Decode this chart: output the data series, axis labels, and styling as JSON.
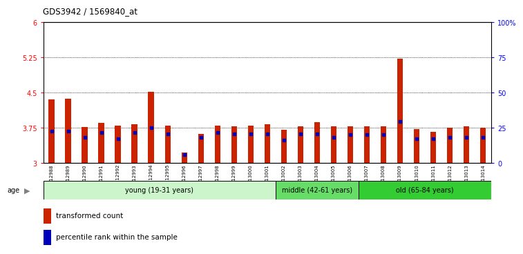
{
  "title": "GDS3942 / 1569840_at",
  "samples": [
    "GSM812988",
    "GSM812989",
    "GSM812990",
    "GSM812991",
    "GSM812992",
    "GSM812993",
    "GSM812994",
    "GSM812995",
    "GSM812996",
    "GSM812997",
    "GSM812998",
    "GSM812999",
    "GSM813000",
    "GSM813001",
    "GSM813002",
    "GSM813003",
    "GSM813004",
    "GSM813005",
    "GSM813006",
    "GSM813007",
    "GSM813008",
    "GSM813009",
    "GSM813010",
    "GSM813011",
    "GSM813012",
    "GSM813013",
    "GSM813014"
  ],
  "red_heights": [
    4.35,
    4.37,
    3.77,
    3.85,
    3.8,
    3.83,
    4.52,
    3.8,
    3.22,
    3.62,
    3.8,
    3.78,
    3.8,
    3.82,
    3.71,
    3.78,
    3.87,
    3.78,
    3.78,
    3.78,
    3.78,
    5.22,
    3.72,
    3.66,
    3.75,
    3.78,
    3.75
  ],
  "blue_vals": [
    3.68,
    3.68,
    3.55,
    3.65,
    3.52,
    3.65,
    3.75,
    3.62,
    3.18,
    3.55,
    3.65,
    3.62,
    3.62,
    3.62,
    3.48,
    3.62,
    3.62,
    3.55,
    3.6,
    3.6,
    3.6,
    3.88,
    3.52,
    3.52,
    3.55,
    3.55,
    3.55
  ],
  "groups": [
    {
      "label": "young (19-31 years)",
      "start": 0,
      "end": 14,
      "color": "#ccf5cc"
    },
    {
      "label": "middle (42-61 years)",
      "start": 14,
      "end": 19,
      "color": "#66dd66"
    },
    {
      "label": "old (65-84 years)",
      "start": 19,
      "end": 27,
      "color": "#33cc33"
    }
  ],
  "ylim": [
    3.0,
    6.0
  ],
  "y2lim": [
    0,
    100
  ],
  "yticks": [
    3.0,
    3.75,
    4.5,
    5.25,
    6.0
  ],
  "y2ticks": [
    0,
    25,
    50,
    75,
    100
  ],
  "hlines": [
    3.75,
    4.5,
    5.25
  ],
  "bar_color": "#cc2200",
  "blue_color": "#0000bb",
  "bar_width": 0.35,
  "plot_bg": "#ffffff"
}
